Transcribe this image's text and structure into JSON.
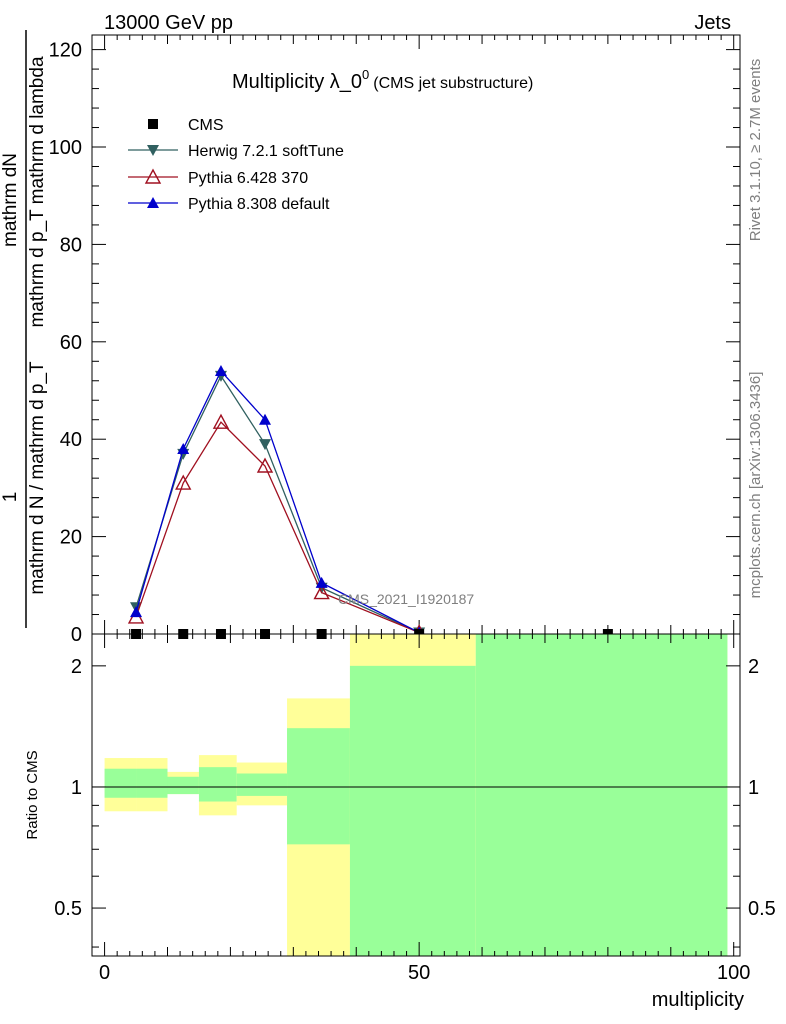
{
  "header": {
    "left": "13000 GeV pp",
    "right": "Jets"
  },
  "side": {
    "rivet": "Rivet 3.1.10, ≥ 2.7M events",
    "mcplots": "mcplots.cern.ch [arXiv:1306.3436]"
  },
  "watermark": "CMS_2021_I1920187",
  "colors": {
    "cms": "#000000",
    "herwig": "#306060",
    "pythia6": "#a01020",
    "pythia8": "#0000cc",
    "band_inner": "#99ff99",
    "band_outer": "#ffff99"
  },
  "chart_data": [
    {
      "type": "line",
      "title": "Multiplicity λ_0⁰",
      "title_main": "Multiplicity λ_0",
      "title_sup": "0",
      "title_note": "(CMS jet substructure)",
      "ylabel_top": "mathrm dN",
      "ylabel_sub": "mathrm d p_T mathrm d lambda",
      "ylabel_num": "1",
      "ylabel_den": "mathrm d N / mathrm d p_T",
      "ylim": [
        0,
        123
      ],
      "xlim": [
        -2,
        101
      ],
      "y_ticks": [
        0,
        20,
        40,
        60,
        80,
        100,
        120
      ],
      "legend_position": "top-left",
      "series": [
        {
          "name": "CMS",
          "marker": "square",
          "x": [
            5,
            12.5,
            18.5,
            25.5,
            34.5,
            50,
            80
          ],
          "y": [
            0,
            0,
            0,
            0,
            0,
            0,
            0
          ]
        },
        {
          "name": "Herwig 7.2.1 softTune",
          "marker": "triangle-down",
          "x": [
            5,
            12.5,
            18.5,
            25.5,
            34.5,
            50
          ],
          "y": [
            5.5,
            37,
            53,
            39,
            9.5,
            0.3
          ]
        },
        {
          "name": "Pythia 6.428 370",
          "marker": "triangle-open",
          "x": [
            5,
            12.5,
            18.5,
            25.5,
            34.5,
            50
          ],
          "y": [
            3.5,
            31,
            43.5,
            34.5,
            8.5,
            0.3
          ]
        },
        {
          "name": "Pythia 8.308 default",
          "marker": "triangle-up",
          "x": [
            5,
            12.5,
            18.5,
            25.5,
            34.5,
            50
          ],
          "y": [
            4.5,
            38,
            54,
            44,
            10.5,
            0.3
          ]
        }
      ]
    },
    {
      "type": "area",
      "ylabel": "Ratio to CMS",
      "xlabel": "multiplicity",
      "ylim": [
        0.38,
        2.4
      ],
      "scale": "log",
      "y_ticks": [
        0.5,
        1,
        2
      ],
      "x_ticks": [
        0,
        50,
        100
      ],
      "reference": 1,
      "bands": [
        {
          "x0": 0,
          "x1": 5,
          "inner": [
            0.94,
            1.11
          ],
          "outer": [
            0.87,
            1.18
          ]
        },
        {
          "x0": 5,
          "x1": 10,
          "inner": [
            0.94,
            1.11
          ],
          "outer": [
            0.87,
            1.18
          ]
        },
        {
          "x0": 10,
          "x1": 15,
          "inner": [
            0.96,
            1.06
          ],
          "outer": [
            0.96,
            1.09
          ]
        },
        {
          "x0": 15,
          "x1": 21,
          "inner": [
            0.92,
            1.12
          ],
          "outer": [
            0.85,
            1.2
          ]
        },
        {
          "x0": 21,
          "x1": 29,
          "inner": [
            0.95,
            1.08
          ],
          "outer": [
            0.9,
            1.15
          ]
        },
        {
          "x0": 29,
          "x1": 39,
          "inner": [
            0.35,
            1.4
          ],
          "outer": [
            0.35,
            1.66
          ],
          "outer_lo_gap": 0.72
        },
        {
          "x0": 39,
          "x1": 59,
          "inner": [
            0.35,
            2.0
          ],
          "outer": [
            0.35,
            2.4
          ]
        },
        {
          "x0": 59,
          "x1": 99,
          "inner": [
            0.35,
            2.4
          ],
          "outer": [
            0.35,
            2.4
          ]
        }
      ]
    }
  ]
}
